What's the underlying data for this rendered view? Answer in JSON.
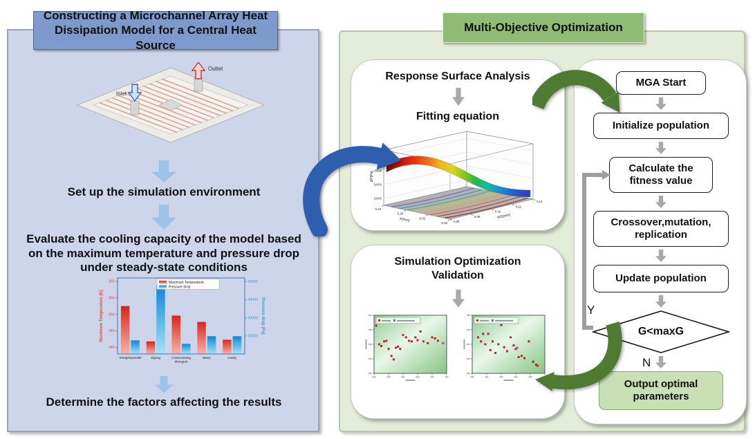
{
  "left_panel": {
    "title": "Constructing a Microchannel Array Heat Dissipation Model for a Central Heat Source",
    "model": {
      "inlet_label": "Inlet",
      "outlet_label": "Outlet"
    },
    "step1": "Set up the simulation environment",
    "step2": "Evaluate the cooling capacity of the model based on the maximum temperature and pressure drop under steady-state conditions",
    "step3": "Determine the factors affecting the results"
  },
  "right_panel": {
    "title": "Multi-Objective Optimization",
    "response_box": {
      "title": "Response Surface Analysis",
      "subtitle": "Fitting equation"
    },
    "validation_box": {
      "title": "Simulation Optimization Validation"
    },
    "flowchart": {
      "start": "MGA Start",
      "init": "Initialize population",
      "fitness": "Calculate the fitness value",
      "crossover": "Crossover,mutation, replication",
      "update": "Update population",
      "decision": "G<maxG",
      "yes": "Y",
      "no": "N",
      "output": "Output optimal parameters"
    }
  },
  "colors": {
    "left_panel_bg": "#cdd5ea",
    "left_title_bg": "#7e99cc",
    "right_panel_bg": "#e4edd9",
    "right_title_bg": "#8fbc74",
    "flow_arrow_blue": "#9dc4e8",
    "link_arrow_blue": "#2e5fae",
    "link_arrow_green": "#4e7b31",
    "gray_arrow": "#a9a9a9",
    "output_box_bg": "#c9e0b6",
    "temperature_red": "#e8473f",
    "pressure_blue": "#29a8e0"
  },
  "chart_data": [
    {
      "id": "channel-comparison",
      "type": "bar",
      "categories": [
        "Straight/parallel",
        "Zigzag",
        "Crisscrossing\ndivergent",
        "Wavy",
        "Cavity"
      ],
      "series": [
        {
          "name": "Maximum Temperature",
          "axis": "left",
          "color": "#e8473f",
          "values": [
            352.5,
            341.8,
            349.6,
            347.7,
            342.3
          ]
        },
        {
          "name": "Pressure drop",
          "axis": "right",
          "color": "#29a8e0",
          "values": [
            17500,
            48000,
            15600,
            19800,
            19800
          ]
        }
      ],
      "ylabel_left": "Maximum Temperature (K)",
      "ylabel_right": "Pressure drop (Pa)",
      "ylim_left": [
        338,
        361
      ],
      "ylim_right": [
        10000,
        52000
      ],
      "yticks_left": [
        340,
        345,
        350,
        355,
        360
      ],
      "yticks_right": [
        20000,
        30000,
        40000,
        50000
      ]
    },
    {
      "id": "fitting-surface",
      "type": "surface",
      "xlabel": "X(mm)",
      "xticks": [
        0.24,
        0.28,
        0.32,
        0.36
      ],
      "ylabel": "W2(mm)",
      "yticks": [
        0.08,
        0.09,
        0.1,
        0.11,
        0.12
      ],
      "zlabel": "ΔP(Pa)",
      "zticks": [
        15000,
        20000,
        25000,
        30000
      ],
      "zlim": [
        12500,
        32500
      ],
      "description": "Rainbow response surface: pressure drop high (~30000 Pa, red) at small X, descending to low (~15000 Pa, blue) at large X / large W2, with colored contour projection on the gray base plane"
    },
    {
      "id": "validation-scatter-left",
      "type": "scatter",
      "marker": "red-square",
      "points": [
        [
          0.03,
          0.82
        ],
        [
          0.07,
          0.5
        ],
        [
          0.1,
          0.47
        ],
        [
          0.14,
          0.55
        ],
        [
          0.17,
          0.56
        ],
        [
          0.2,
          0.42
        ],
        [
          0.24,
          0.3
        ],
        [
          0.27,
          0.24
        ],
        [
          0.3,
          0.44
        ],
        [
          0.33,
          0.46
        ],
        [
          0.36,
          0.42
        ],
        [
          0.4,
          0.66
        ],
        [
          0.44,
          0.62
        ],
        [
          0.48,
          0.56
        ],
        [
          0.52,
          0.55
        ],
        [
          0.57,
          0.62
        ],
        [
          0.6,
          0.57
        ],
        [
          0.64,
          0.72
        ],
        [
          0.68,
          0.55
        ],
        [
          0.74,
          0.52
        ],
        [
          0.8,
          0.62
        ],
        [
          0.84,
          0.6
        ],
        [
          0.88,
          0.56
        ]
      ],
      "special_point": [
        0.95,
        0.52
      ]
    },
    {
      "id": "validation-scatter-right",
      "type": "scatter",
      "marker": "red-square",
      "points": [
        [
          0.08,
          0.62
        ],
        [
          0.12,
          0.55
        ],
        [
          0.15,
          0.68
        ],
        [
          0.18,
          0.5
        ],
        [
          0.22,
          0.68
        ],
        [
          0.25,
          0.4
        ],
        [
          0.28,
          0.55
        ],
        [
          0.32,
          0.35
        ],
        [
          0.36,
          0.5
        ],
        [
          0.4,
          0.83
        ],
        [
          0.44,
          0.45
        ],
        [
          0.48,
          0.38
        ],
        [
          0.53,
          0.62
        ],
        [
          0.57,
          0.48
        ],
        [
          0.6,
          0.42
        ],
        [
          0.64,
          0.28
        ],
        [
          0.68,
          0.3
        ],
        [
          0.72,
          0.26
        ],
        [
          0.78,
          0.55
        ],
        [
          0.84,
          0.2
        ],
        [
          0.88,
          0.15
        ],
        [
          0.9,
          0.13
        ]
      ],
      "special_point": [
        0.62,
        0.44
      ]
    }
  ]
}
